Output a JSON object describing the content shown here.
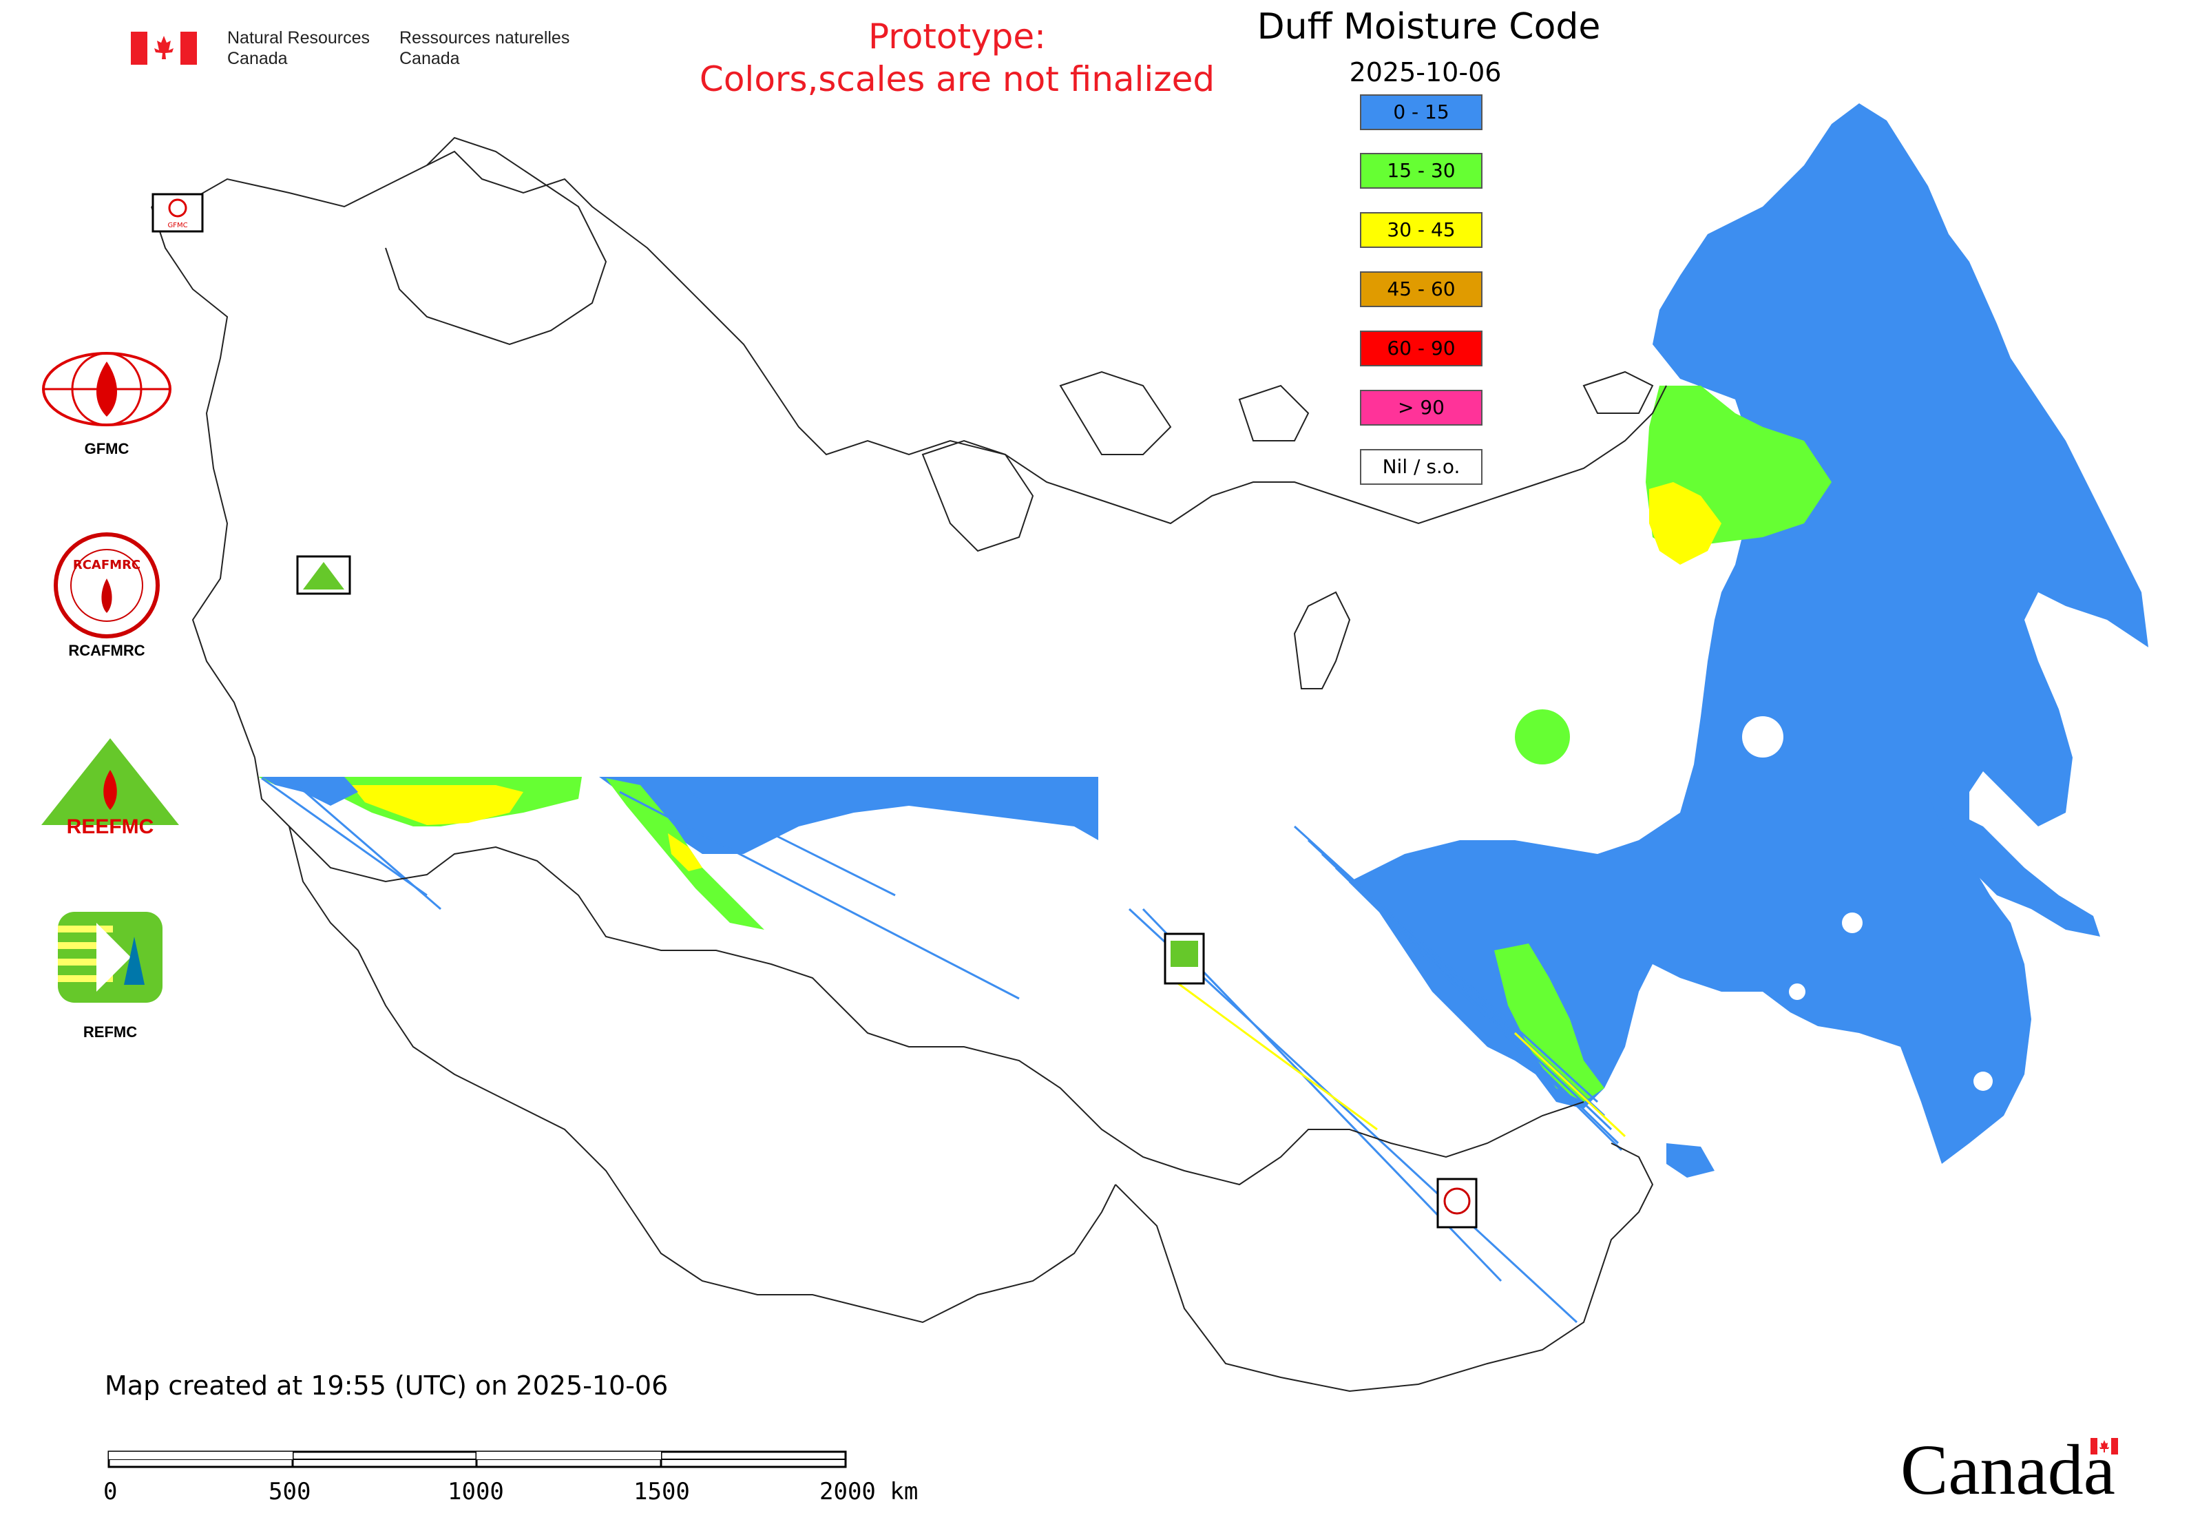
{
  "header": {
    "nrcan_en": [
      "Natural Resources",
      "Canada"
    ],
    "nrcan_fr": [
      "Ressources naturelles",
      "Canada"
    ],
    "prototype_notice": [
      "Prototype:",
      "Colors,scales are not finalized"
    ]
  },
  "map": {
    "title": "Duff Moisture Code",
    "date": "2025-10-06"
  },
  "legend": [
    {
      "label": "0 - 15",
      "color": "#3d8ef0"
    },
    {
      "label": "15 - 30",
      "color": "#66ff33"
    },
    {
      "label": "30 - 45",
      "color": "#ffff00"
    },
    {
      "label": "45 - 60",
      "color": "#e09b00"
    },
    {
      "label": "60 - 90",
      "color": "#ff0000"
    },
    {
      "label": "> 90",
      "color": "#ff3399"
    },
    {
      "label": "Nil / s.o.",
      "color": "#ffffff"
    }
  ],
  "side_logos": [
    "GFMC",
    "RCAFMRC",
    "REEFMC",
    "REFMC"
  ],
  "logo_texts": {
    "gfmc_small": "GFMC",
    "rcafmrc_ring": "RCAFMRC",
    "reefmc_word": "REEFMC"
  },
  "footer": {
    "created": "Map created at 19:55 (UTC) on 2025-10-06",
    "scale_labels": [
      "0",
      "500",
      "1000",
      "1500",
      "2000 km"
    ],
    "wordmark": "Canada"
  }
}
